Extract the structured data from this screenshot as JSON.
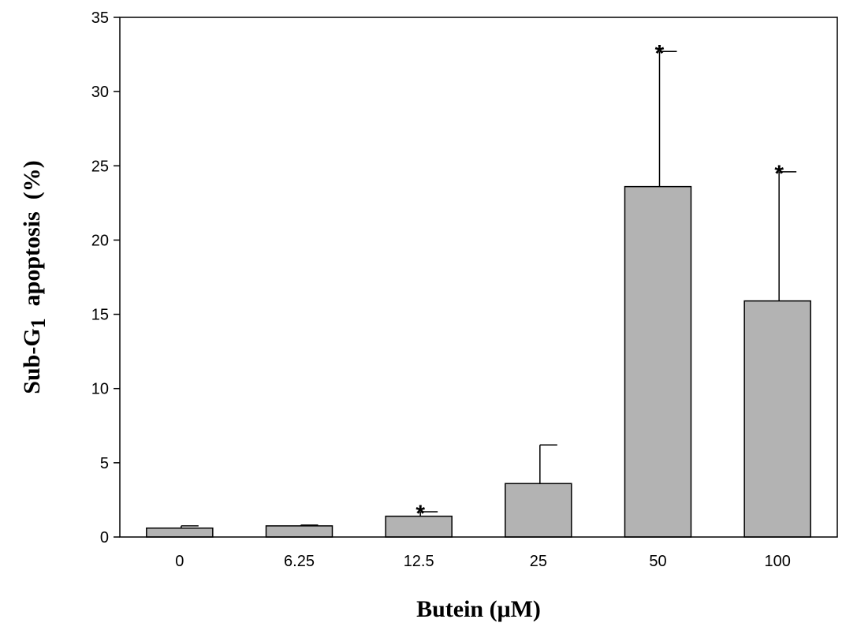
{
  "chart_data": {
    "type": "bar",
    "categories": [
      "0",
      "6.25",
      "12.5",
      "25",
      "50",
      "100"
    ],
    "values": [
      0.6,
      0.75,
      1.4,
      3.6,
      23.6,
      15.9
    ],
    "errors": [
      0.15,
      0.05,
      0.3,
      2.6,
      9.1,
      8.7
    ],
    "significance": [
      "",
      "",
      "*",
      "",
      "*",
      "*"
    ],
    "xlabel": "Butein (μM)",
    "ylabel": {
      "prefix": "Sub-G",
      "subscript": "1",
      "suffix": "  apoptosis  (%)"
    },
    "ylim": [
      0,
      35
    ],
    "yticks": [
      0,
      5,
      10,
      15,
      20,
      25,
      30,
      35
    ],
    "bar_color": "#b3b3b3",
    "grid": false
  }
}
